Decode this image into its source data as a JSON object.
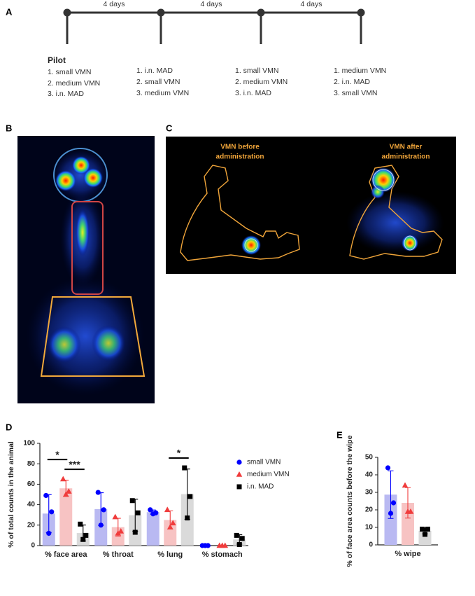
{
  "panel_labels": [
    "A",
    "B",
    "C",
    "D",
    "E"
  ],
  "timeline": {
    "intervals": [
      "4 days",
      "4 days",
      "4 days"
    ],
    "sessions": [
      {
        "title": "Pilot",
        "items": [
          "1. small VMN",
          "2. medium VMN",
          "3. i.n. MAD"
        ]
      },
      {
        "items": [
          "1. i.n. MAD",
          "2. small VMN",
          "3. medium VMN"
        ]
      },
      {
        "items": [
          "1. small VMN",
          "2. medium VMN",
          "3. i.n. MAD"
        ]
      },
      {
        "items": [
          "1. medium VMN",
          "2. i.n. MAD",
          "3. small VMN"
        ]
      }
    ]
  },
  "images": {
    "c_captions": [
      [
        "VMN before",
        "administration"
      ],
      [
        "VMN after",
        "administration"
      ]
    ]
  },
  "chart_data": [
    {
      "type": "bar",
      "y_label": "% of total counts in the animal",
      "categories": [
        "% face area",
        "% throat",
        "% lung",
        "% stomach"
      ],
      "ylim": [
        0,
        100
      ],
      "yticks": [
        0,
        20,
        40,
        60,
        80,
        100
      ],
      "grid": false,
      "legend": "right",
      "series": [
        {
          "name": "small VMN",
          "color": "#0000ff",
          "bar_color": "#b9b9f2",
          "marker": "circle",
          "values": [
            31.3,
            35.7,
            32.7,
            0
          ],
          "errors": [
            18.5,
            16,
            2.1,
            0
          ],
          "points": [
            [
              49,
              33,
              12
            ],
            [
              52,
              35,
              20
            ],
            [
              35,
              32,
              31
            ],
            [
              0,
              0,
              0
            ]
          ]
        },
        {
          "name": "medium VMN",
          "color": "#f03c3c",
          "bar_color": "#f7c3c3",
          "marker": "triangle",
          "values": [
            56,
            18,
            25,
            0
          ],
          "errors": [
            7.9,
            8.7,
            8.9,
            0
          ],
          "points": [
            [
              65,
              53,
              50
            ],
            [
              28,
              14,
              12
            ],
            [
              35,
              22,
              18
            ],
            [
              0,
              0,
              0
            ]
          ]
        },
        {
          "name": "i.n. MAD",
          "color": "#000000",
          "bar_color": "#dadada",
          "marker": "square",
          "values": [
            12.3,
            29.7,
            50.3,
            6
          ],
          "errors": [
            7.8,
            15.6,
            24.6,
            4.6
          ],
          "points": [
            [
              21,
              10,
              6
            ],
            [
              44,
              32,
              13
            ],
            [
              76,
              48,
              27
            ],
            [
              10,
              7,
              1
            ]
          ]
        }
      ],
      "annotations": [
        {
          "text": "*",
          "category": "% face area",
          "between": [
            "small VMN",
            "medium VMN"
          ]
        },
        {
          "text": "***",
          "category": "% face area",
          "between": [
            "medium VMN",
            "i.n. MAD"
          ]
        },
        {
          "text": "*",
          "category": "% lung",
          "between": [
            "medium VMN",
            "i.n. MAD"
          ]
        }
      ]
    },
    {
      "type": "bar",
      "y_label": "% of face area counts before the wipe",
      "categories": [
        "% wipe"
      ],
      "ylim": [
        0,
        50
      ],
      "yticks": [
        0,
        10,
        20,
        30,
        40,
        50
      ],
      "grid": false,
      "series": [
        {
          "color": "#0000ff",
          "bar_color": "#b9b9f2",
          "marker": "circle",
          "values": [
            28.7
          ],
          "errors": [
            13.6
          ],
          "points": [
            [
              44,
              24,
              18
            ]
          ]
        },
        {
          "color": "#f03c3c",
          "bar_color": "#f7c3c3",
          "marker": "triangle",
          "values": [
            24
          ],
          "errors": [
            8.7
          ],
          "points": [
            [
              34,
              19,
              19
            ]
          ]
        },
        {
          "color": "#000000",
          "bar_color": "#dadada",
          "marker": "square",
          "values": [
            8
          ],
          "errors": [
            1.7
          ],
          "points": [
            [
              9,
              9,
              6
            ]
          ]
        }
      ]
    }
  ]
}
